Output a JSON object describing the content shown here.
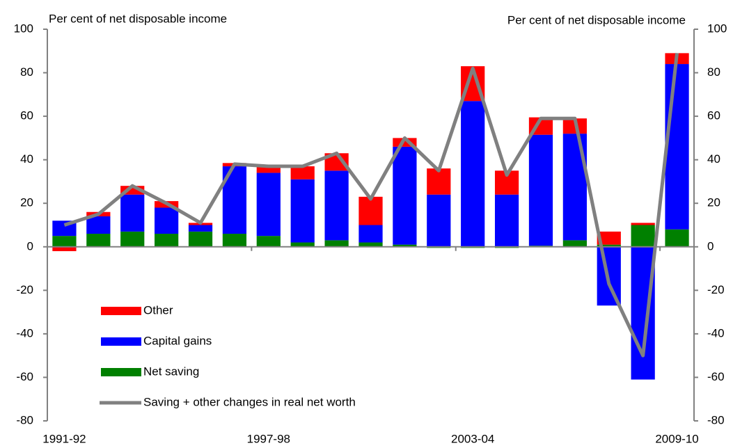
{
  "chart_data": {
    "type": "bar",
    "stacked": true,
    "ylabel": "Per cent of net disposable income",
    "y2label": "Per cent of net disposable income",
    "categories": [
      "1991-92",
      null,
      null,
      null,
      null,
      null,
      "1997-98",
      null,
      null,
      null,
      null,
      null,
      "2003-04",
      null,
      null,
      null,
      null,
      null,
      "2009-10"
    ],
    "series": [
      {
        "name": "Net saving",
        "color": "#008000",
        "values": [
          5,
          6,
          7,
          6,
          7,
          6,
          5,
          2,
          3,
          2,
          1,
          -0.5,
          -0.5,
          -0.5,
          0.5,
          3,
          1,
          10,
          8
        ]
      },
      {
        "name": "Capital gains",
        "color": "#0000ff",
        "values": [
          7,
          8,
          17,
          12,
          3,
          31,
          29,
          29,
          32,
          8,
          45,
          24,
          67,
          24,
          51,
          49,
          -27,
          -61,
          76
        ]
      },
      {
        "name": "Other",
        "color": "#ff0000",
        "values": [
          -2,
          2,
          4,
          3,
          1,
          1.5,
          3,
          6,
          8,
          13,
          4,
          12,
          16,
          11,
          8,
          7,
          6,
          1,
          5
        ]
      },
      {
        "name": "Saving + other changes in real net worth",
        "color": "#808080",
        "type": "line",
        "values": [
          10,
          15,
          28,
          20,
          11,
          38,
          37,
          37,
          43,
          22,
          50,
          35,
          82,
          33,
          59,
          59,
          -17,
          -50,
          89
        ]
      }
    ],
    "ylim": [
      -80,
      100
    ],
    "yticks": [
      -80,
      -60,
      -40,
      -20,
      0,
      20,
      40,
      60,
      80,
      100
    ],
    "y2lim": [
      -80,
      100
    ],
    "y2ticks": [
      -80,
      -60,
      -40,
      -20,
      0,
      20,
      40,
      60,
      80,
      100
    ],
    "legend": "lower left"
  }
}
